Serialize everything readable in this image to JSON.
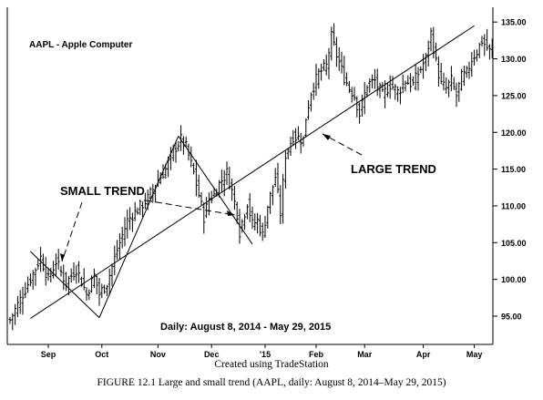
{
  "chart_data": {
    "type": "ohlc",
    "title": "AAPL - Apple Computer",
    "subtitle": "Daily: August 8, 2014 - May 29, 2015",
    "credit": "Created using TradeStation",
    "caption": "FIGURE 12.1 Large and small trend (AAPL, daily: August 8, 2014–May 29, 2015)",
    "ylim": [
      91.5,
      137.0
    ],
    "y_ticks": [
      "135.00",
      "130.00",
      "125.00",
      "120.00",
      "115.00",
      "110.00",
      "105.00",
      "100.00",
      "95.00"
    ],
    "y_tick_values": [
      135,
      130,
      125,
      120,
      115,
      110,
      105,
      100,
      95
    ],
    "x_tick_labels": [
      "Sep",
      "Oct",
      "Nov",
      "Dec",
      "'15",
      "Feb",
      "Mar",
      "Apr",
      "May"
    ],
    "x_tick_bar_index": [
      15,
      36,
      58,
      79,
      100,
      120,
      139,
      162,
      182
    ],
    "close_anchors": [
      [
        0,
        94.5
      ],
      [
        5,
        98.0
      ],
      [
        10,
        101.5
      ],
      [
        12,
        103.0
      ],
      [
        15,
        100.0
      ],
      [
        18,
        102.5
      ],
      [
        22,
        99.5
      ],
      [
        26,
        101.5
      ],
      [
        30,
        98.0
      ],
      [
        33,
        100.5
      ],
      [
        35,
        98.0
      ],
      [
        38,
        99.5
      ],
      [
        42,
        104.0
      ],
      [
        46,
        108.0
      ],
      [
        50,
        109.5
      ],
      [
        54,
        111.0
      ],
      [
        58,
        113.5
      ],
      [
        61,
        115.0
      ],
      [
        64,
        117.5
      ],
      [
        67,
        119.0
      ],
      [
        69,
        118.0
      ],
      [
        72,
        114.5
      ],
      [
        74,
        111.5
      ],
      [
        76,
        108.5
      ],
      [
        78,
        111.0
      ],
      [
        80,
        111.5
      ],
      [
        82,
        113.0
      ],
      [
        85,
        114.5
      ],
      [
        87,
        112.0
      ],
      [
        89,
        109.0
      ],
      [
        90,
        106.5
      ],
      [
        93,
        110.5
      ],
      [
        95,
        107.5
      ],
      [
        97,
        108.0
      ],
      [
        99,
        106.0
      ],
      [
        101,
        110.0
      ],
      [
        104,
        114.0
      ],
      [
        106,
        109.0
      ],
      [
        108,
        117.0
      ],
      [
        111,
        119.5
      ],
      [
        115,
        119.0
      ],
      [
        116,
        122.0
      ],
      [
        118,
        125.5
      ],
      [
        121,
        128.0
      ],
      [
        124,
        129.0
      ],
      [
        126,
        133.0
      ],
      [
        128,
        130.5
      ],
      [
        131,
        127.5
      ],
      [
        133,
        126.0
      ],
      [
        135,
        125.0
      ],
      [
        137,
        122.5
      ],
      [
        140,
        126.5
      ],
      [
        143,
        127.0
      ],
      [
        146,
        125.0
      ],
      [
        149,
        126.5
      ],
      [
        152,
        125.5
      ],
      [
        155,
        127.0
      ],
      [
        158,
        126.5
      ],
      [
        160,
        128.0
      ],
      [
        163,
        130.0
      ],
      [
        165,
        133.5
      ],
      [
        167,
        129.5
      ],
      [
        169,
        126.5
      ],
      [
        171,
        126.0
      ],
      [
        173,
        127.0
      ],
      [
        175,
        125.0
      ],
      [
        177,
        127.5
      ],
      [
        179,
        128.0
      ],
      [
        181,
        130.0
      ],
      [
        183,
        131.0
      ],
      [
        185,
        132.5
      ],
      [
        187,
        131.5
      ],
      [
        189,
        130.5
      ]
    ],
    "large_trend_line": {
      "start": [
        8,
        94.7
      ],
      "end": [
        182,
        134.5
      ]
    },
    "small_trend_segments": [
      [
        [
          8,
          103.8
        ],
        [
          35,
          94.8
        ]
      ],
      [
        [
          35,
          94.8
        ],
        [
          66,
          119.5
        ]
      ],
      [
        [
          66,
          119.5
        ],
        [
          95,
          104.8
        ]
      ]
    ],
    "annotations": {
      "small_trend": "SMALL TREND",
      "large_trend": "LARGE TREND"
    }
  }
}
